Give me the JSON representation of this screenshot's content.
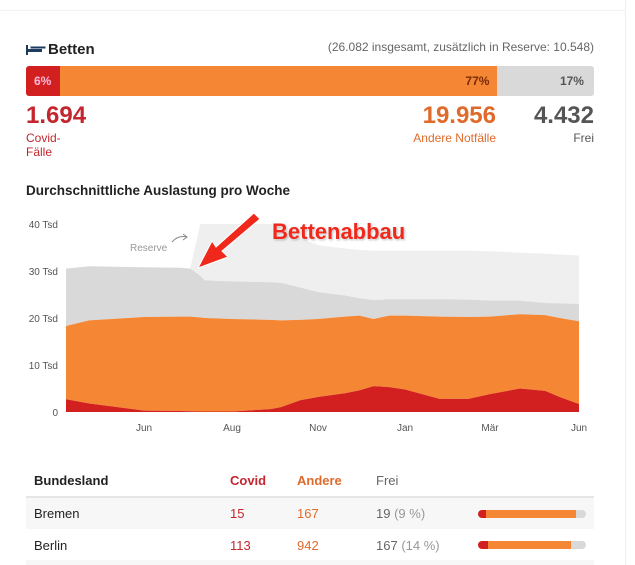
{
  "header": {
    "title": "Betten",
    "icon": "bed-icon",
    "subtotal": "(26.082 insgesamt, zusätzlich in Reserve: 10.548)"
  },
  "summary_bar": {
    "covid_pct": 6,
    "andere_pct": 77,
    "frei_pct": 17,
    "covid_label": "6%",
    "andere_label": "77%",
    "frei_label": "17%"
  },
  "summary": {
    "covid_value": "1.694",
    "covid_label": "Covid-Fälle",
    "andere_value": "19.956",
    "andere_label": "Andere Notfälle",
    "frei_value": "4.432",
    "frei_label": "Frei"
  },
  "colors": {
    "covid": "#d21f1f",
    "andere": "#f58634",
    "frei": "#d9d9d9",
    "reserve": "#efefef"
  },
  "chart_data": {
    "type": "area",
    "stacked": true,
    "title": "Durchschnittliche Auslastung pro Woche",
    "ylim": [
      0,
      40
    ],
    "yticks": [
      {
        "v": 0,
        "label": "0"
      },
      {
        "v": 10,
        "label": "10 Tsd"
      },
      {
        "v": 20,
        "label": "20 Tsd"
      },
      {
        "v": 30,
        "label": "30 Tsd"
      },
      {
        "v": 40,
        "label": "40 Tsd"
      }
    ],
    "xticks": [
      {
        "date": "2020-06-01",
        "label": "Jun"
      },
      {
        "date": "2020-08-01",
        "label": "Aug"
      },
      {
        "date": "2020-11-01",
        "label": "Nov"
      },
      {
        "date": "2021-01-01",
        "label": "Jan"
      },
      {
        "date": "2021-03-01",
        "label": "Mär"
      },
      {
        "date": "2021-06-01",
        "label": "Jun"
      }
    ],
    "x": [
      "2020-04-15",
      "2020-04-29",
      "2020-06-01",
      "2020-06-26",
      "2020-07-03",
      "2020-07-10",
      "2020-07-13",
      "2020-08-01",
      "2020-09-11",
      "2020-09-22",
      "2020-10-13",
      "2020-11-01",
      "2020-11-20",
      "2020-11-30",
      "2020-12-10",
      "2020-12-21",
      "2021-01-01",
      "2021-01-25",
      "2021-02-14",
      "2021-03-01",
      "2021-04-01",
      "2021-04-27",
      "2021-05-12",
      "2021-06-01"
    ],
    "series": [
      {
        "key": "covid",
        "values": [
          2.7,
          1.8,
          0.3,
          0.2,
          0.15,
          0.1,
          0.1,
          0.1,
          0.6,
          1.0,
          2.5,
          3.2,
          4.0,
          4.6,
          5.5,
          5.3,
          4.8,
          2.8,
          2.8,
          3.8,
          5.0,
          4.5,
          3.2,
          1.7
        ]
      },
      {
        "key": "andere",
        "values": [
          15.6,
          17.7,
          19.9,
          20.1,
          20.15,
          20.0,
          19.9,
          19.7,
          19.0,
          18.5,
          17.1,
          16.6,
          16.3,
          15.9,
          14.3,
          15.2,
          15.7,
          17.5,
          17.4,
          16.5,
          15.8,
          16.1,
          16.8,
          17.6
        ]
      },
      {
        "key": "frei",
        "values": [
          12.2,
          11.5,
          10.6,
          10.4,
          10.2,
          8.9,
          8.0,
          8.0,
          8.0,
          8.0,
          6.9,
          5.7,
          4.5,
          3.7,
          4.0,
          3.5,
          3.5,
          3.7,
          3.7,
          3.4,
          2.9,
          2.6,
          3.1,
          3.7
        ]
      },
      {
        "key": "reserve",
        "name": "Reserve",
        "values": [
          0,
          0,
          0,
          0,
          0,
          11,
          12,
          12.2,
          12.4,
          12,
          10.5,
          10,
          10,
          10.3,
          10.5,
          10.3,
          10.3,
          10.3,
          10.4,
          10.5,
          10.2,
          10.5,
          10.4,
          10.3
        ]
      }
    ],
    "annotations": [
      "Reserve",
      "Bettenabbau"
    ]
  },
  "table": {
    "headers": [
      "Bundesland",
      "Covid",
      "Andere",
      "Frei"
    ],
    "rows": [
      {
        "name": "Bremen",
        "covid": "15",
        "andere": "167",
        "frei": "19",
        "frei_pct": "(9 %)",
        "bar": [
          15,
          167,
          19
        ]
      },
      {
        "name": "Berlin",
        "covid": "113",
        "andere": "942",
        "frei": "167",
        "frei_pct": "(14 %)",
        "bar": [
          113,
          942,
          167
        ]
      }
    ]
  }
}
